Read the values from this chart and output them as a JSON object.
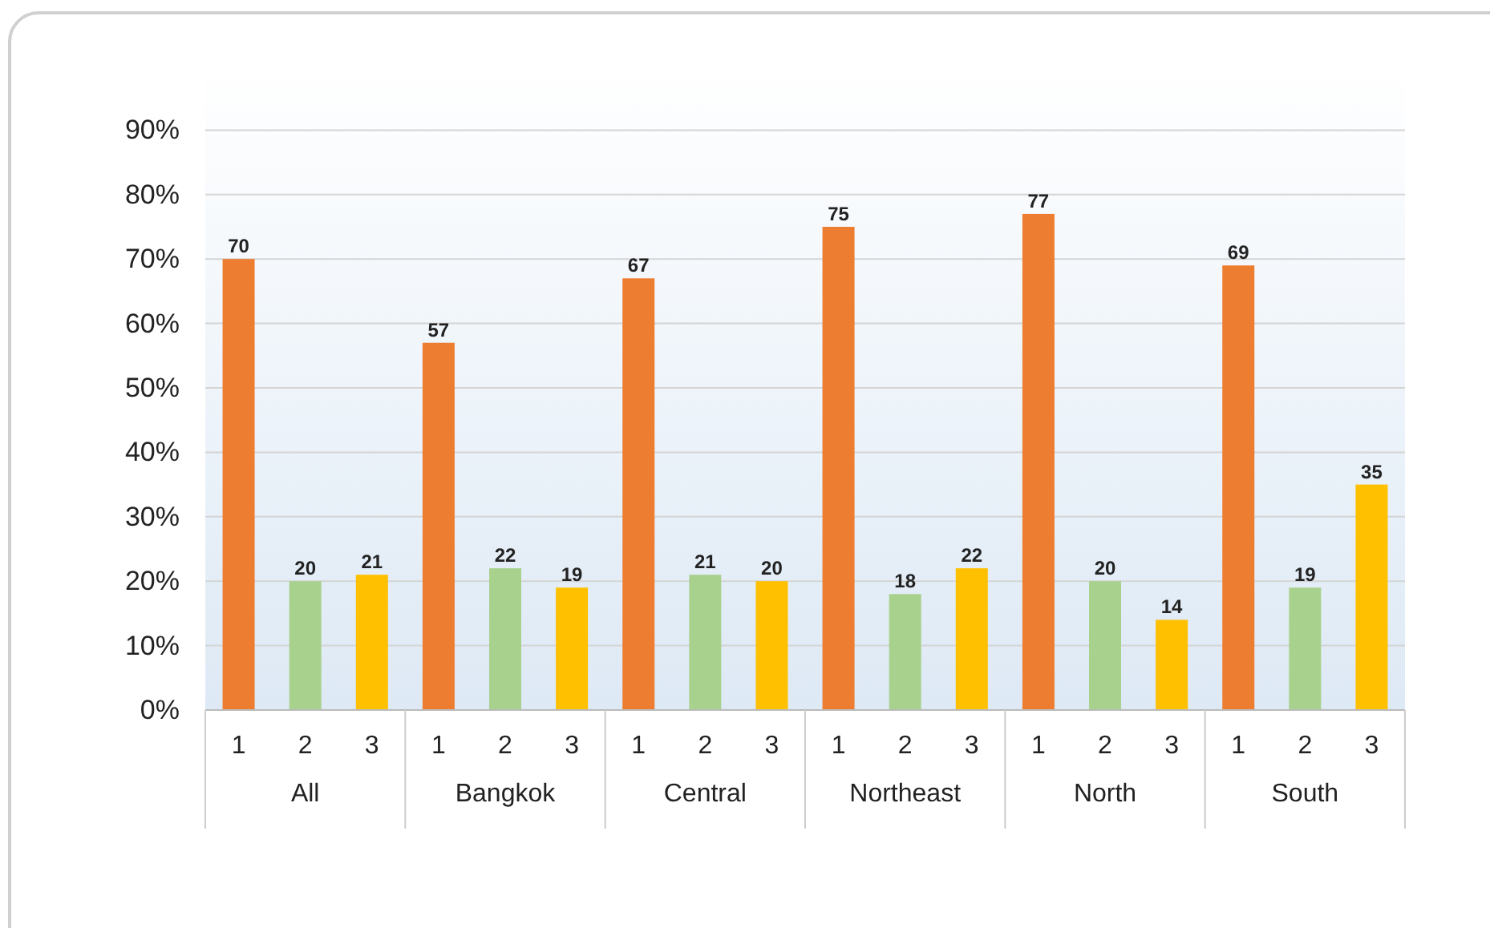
{
  "chart_data": {
    "type": "bar",
    "categories": [
      "All",
      "Bangkok",
      "Central",
      "Northeast",
      "North",
      "South"
    ],
    "series": [
      {
        "name": "1",
        "color": "#ed7d31",
        "values": [
          70,
          57,
          67,
          75,
          77,
          69
        ]
      },
      {
        "name": "2",
        "color": "#a9d18e",
        "values": [
          20,
          22,
          21,
          18,
          20,
          19
        ]
      },
      {
        "name": "3",
        "color": "#ffc000",
        "values": [
          21,
          19,
          20,
          22,
          14,
          35
        ]
      }
    ],
    "ylim": [
      0,
      100
    ],
    "yticks": [
      {
        "value": 0,
        "label": "0%"
      },
      {
        "value": 10,
        "label": "10%"
      },
      {
        "value": 20,
        "label": "20%"
      },
      {
        "value": 30,
        "label": "30%"
      },
      {
        "value": 40,
        "label": "40%"
      },
      {
        "value": 50,
        "label": "50%"
      },
      {
        "value": 60,
        "label": "60%"
      },
      {
        "value": 70,
        "label": "70%"
      },
      {
        "value": 80,
        "label": "80%"
      },
      {
        "value": 90,
        "label": "90%"
      }
    ],
    "grid": "y",
    "data_labels": true
  }
}
